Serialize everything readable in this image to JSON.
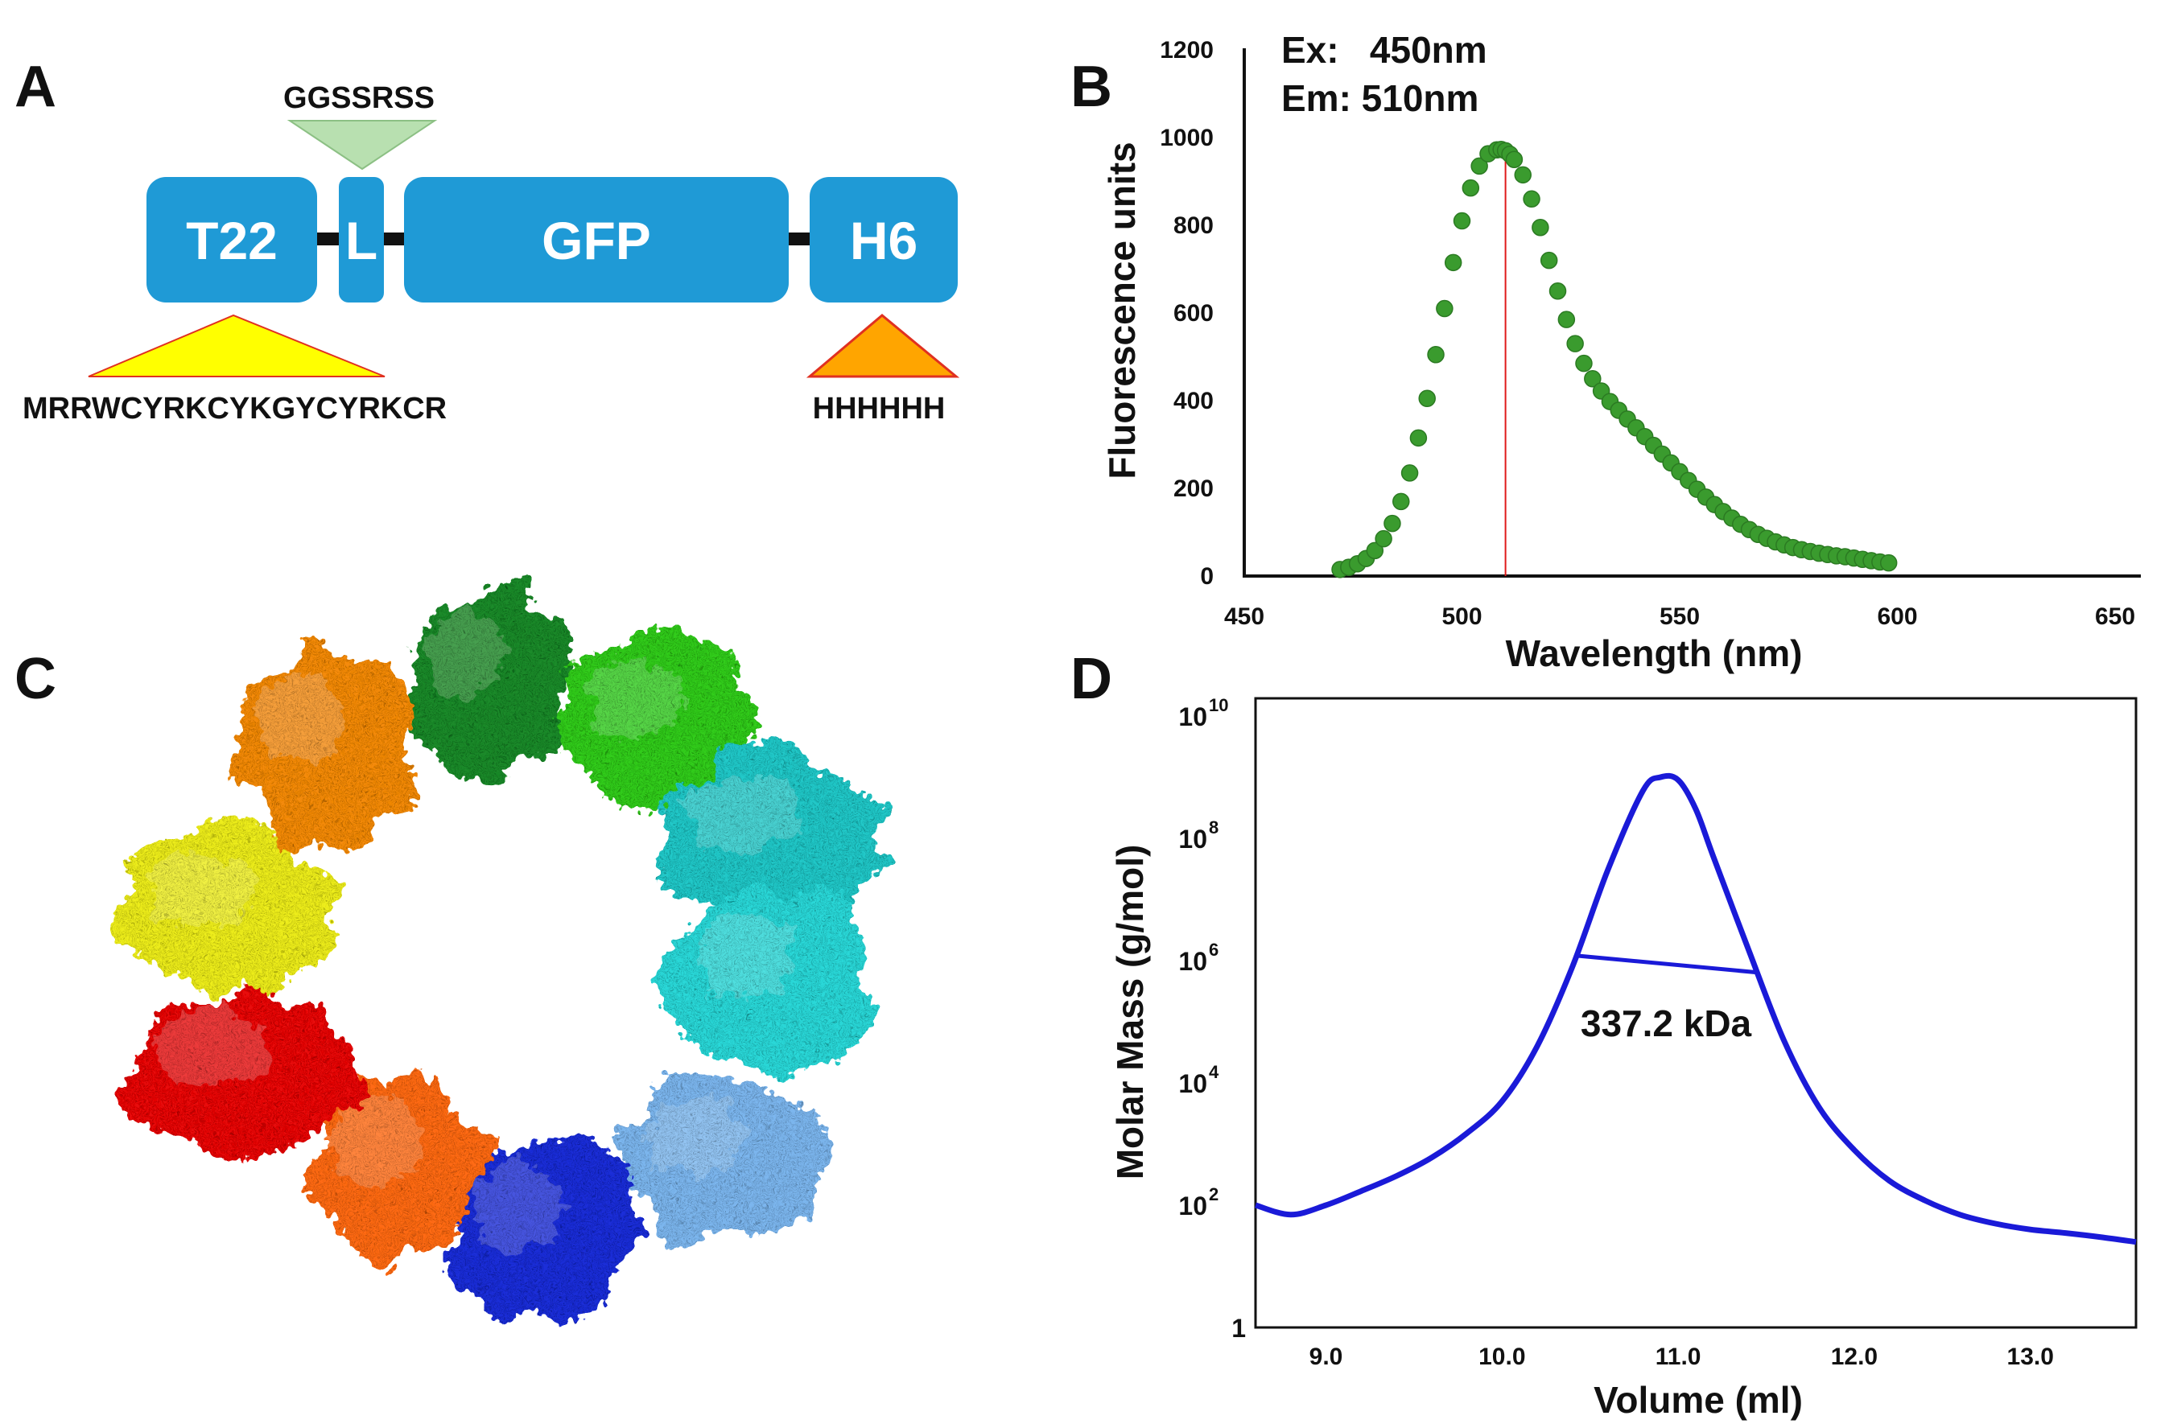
{
  "panels": {
    "a": {
      "letter": "A",
      "linker_seq": "GGSSRSS",
      "domains": [
        "T22",
        "L",
        "GFP",
        "H6"
      ],
      "t22_seq": "MRRWCYRKCYKGYCYRKCR",
      "h6_seq": "HHHHHH",
      "colors": {
        "domain": "#1f9ad6",
        "linker_tri": "#b8e0b0",
        "t22_tri": "#ffff00",
        "h6_tri": "#ffa500",
        "tri_edge": "#e03020"
      }
    },
    "b": {
      "letter": "B",
      "ex_label": "Ex:   450nm",
      "em_label": "Em: 510nm"
    },
    "c": {
      "letter": "C",
      "subunit_colors": [
        "#1e8a2a",
        "#33cc1f",
        "#22c8c8",
        "#2ad8d8",
        "#7bb6ee",
        "#1f2fd8",
        "#ff6a14",
        "#e81010",
        "#eded1a",
        "#f48a10"
      ]
    },
    "d": {
      "letter": "D",
      "annotation": "337.2 kDa"
    }
  },
  "chart_data": [
    {
      "type": "scatter",
      "xlabel": "Wavelength (nm)",
      "ylabel": "Fluorescence units",
      "xlim": [
        450,
        650
      ],
      "ylim": [
        0,
        1200
      ],
      "x_ticks": [
        "450",
        "500",
        "550",
        "600",
        "650"
      ],
      "y_ticks": [
        "0",
        "200",
        "400",
        "600",
        "800",
        "1000",
        "1200"
      ],
      "peak_marker_x": 510,
      "marker_color": "#3a9b2e",
      "peak_line_color": "#e01a1a",
      "x": [
        472,
        474,
        476,
        478,
        480,
        482,
        484,
        486,
        488,
        490,
        492,
        494,
        496,
        498,
        500,
        502,
        504,
        506,
        508,
        509,
        510,
        511,
        512,
        514,
        516,
        518,
        520,
        522,
        524,
        526,
        528,
        530,
        532,
        534,
        536,
        538,
        540,
        542,
        544,
        546,
        548,
        550,
        552,
        554,
        556,
        558,
        560,
        562,
        564,
        566,
        568,
        570,
        572,
        574,
        576,
        578,
        580,
        582,
        584,
        586,
        588,
        590,
        592,
        594,
        596,
        598
      ],
      "y": [
        15,
        20,
        28,
        40,
        58,
        85,
        120,
        170,
        235,
        315,
        405,
        505,
        610,
        715,
        810,
        885,
        935,
        963,
        972,
        973,
        970,
        962,
        950,
        915,
        860,
        795,
        720,
        650,
        585,
        530,
        485,
        450,
        422,
        398,
        378,
        358,
        338,
        318,
        298,
        278,
        258,
        238,
        218,
        198,
        180,
        163,
        147,
        132,
        118,
        106,
        95,
        86,
        78,
        71,
        65,
        60,
        56,
        52,
        49,
        46,
        44,
        41,
        38,
        35,
        32,
        30
      ]
    },
    {
      "type": "line",
      "xlabel": "Volume (ml)",
      "ylabel": "Molar Mass (g/mol)",
      "y_scale": "log",
      "xlim": [
        8.6,
        13.6
      ],
      "ylim": [
        1,
        10000000000
      ],
      "x_ticks": [
        "9.0",
        "10.0",
        "11.0",
        "12.0",
        "13.0"
      ],
      "y_ticks": [
        {
          "value": 1,
          "mantissa": "1",
          "exponent": ""
        },
        {
          "value": 100,
          "mantissa": "10",
          "exponent": "2"
        },
        {
          "value": 10000,
          "mantissa": "10",
          "exponent": "4"
        },
        {
          "value": 1000000,
          "mantissa": "10",
          "exponent": "6"
        },
        {
          "value": 100000000,
          "mantissa": "10",
          "exponent": "8"
        },
        {
          "value": 10000000000,
          "mantissa": "10",
          "exponent": "10"
        }
      ],
      "series_color": "#1a1ad8",
      "x": [
        8.6,
        8.8,
        9.0,
        9.2,
        9.4,
        9.6,
        9.8,
        10.0,
        10.2,
        10.4,
        10.6,
        10.8,
        10.9,
        11.0,
        11.1,
        11.2,
        11.4,
        11.6,
        11.8,
        12.0,
        12.2,
        12.4,
        12.6,
        12.8,
        13.0,
        13.2,
        13.4,
        13.6
      ],
      "y": [
        100,
        70,
        100,
        170,
        300,
        600,
        1500,
        5000,
        40000,
        800000,
        30000000,
        600000000,
        1000000000,
        900000000,
        300000000,
        50000000,
        1500000,
        50000,
        4000,
        800,
        250,
        120,
        70,
        50,
        40,
        35,
        30,
        25
      ],
      "mass_segment": {
        "x": [
          10.43,
          11.45
        ],
        "y": [
          1200000,
          640000
        ]
      }
    }
  ]
}
